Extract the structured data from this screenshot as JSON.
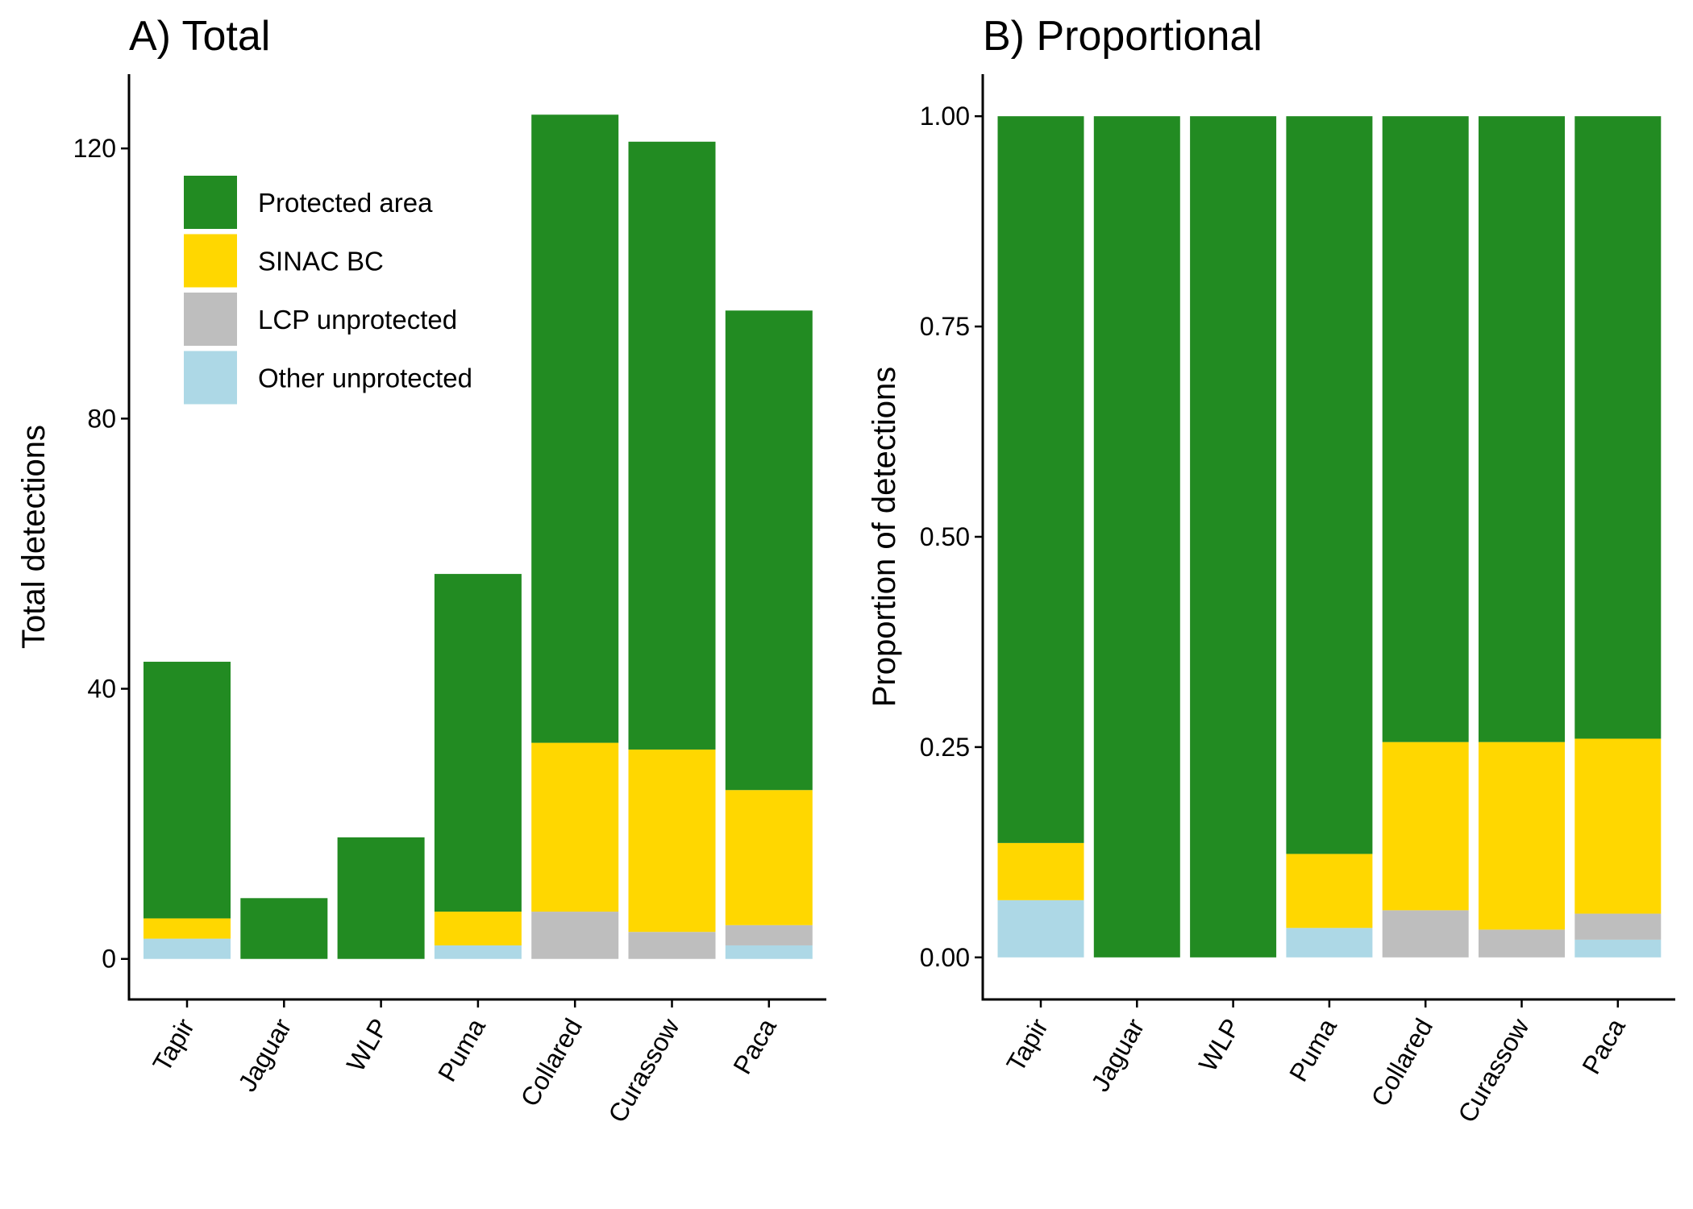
{
  "colors": {
    "Protected area": "#228B22",
    "SINAC BC": "#FFD700",
    "LCP unprotected": "#BEBEBE",
    "Other unprotected": "#ADD8E6"
  },
  "legend": {
    "entries": [
      "Protected area",
      "SINAC BC",
      "LCP unprotected",
      "Other unprotected"
    ]
  },
  "chart_data": [
    {
      "type": "bar",
      "stacked": true,
      "title": "A) Total",
      "xlabel": "",
      "ylabel": "Total detections",
      "ylim": [
        -6,
        131
      ],
      "yticks": [
        0,
        40,
        80,
        120
      ],
      "ytick_labels": [
        "0",
        "40",
        "80",
        "120"
      ],
      "categories": [
        "Tapir",
        "Jaguar",
        "WLP",
        "Puma",
        "Collared",
        "Curassow",
        "Paca"
      ],
      "series": [
        {
          "name": "Other unprotected",
          "values": [
            3,
            0,
            0,
            2,
            0,
            0,
            2
          ]
        },
        {
          "name": "LCP unprotected",
          "values": [
            0,
            0,
            0,
            0,
            7,
            4,
            3
          ]
        },
        {
          "name": "SINAC BC",
          "values": [
            3,
            0,
            0,
            5,
            25,
            27,
            20
          ]
        },
        {
          "name": "Protected area",
          "values": [
            38,
            9,
            18,
            50,
            93,
            90,
            71
          ]
        }
      ],
      "legend_position": "top-left",
      "grid": false
    },
    {
      "type": "bar",
      "stacked": true,
      "title": "B) Proportional",
      "xlabel": "",
      "ylabel": "Proportion of detections",
      "ylim": [
        -0.05,
        1.05
      ],
      "yticks": [
        0,
        0.25,
        0.5,
        0.75,
        1.0
      ],
      "ytick_labels": [
        "0.00",
        "0.25",
        "0.50",
        "0.75",
        "1.00"
      ],
      "categories": [
        "Tapir",
        "Jaguar",
        "WLP",
        "Puma",
        "Collared",
        "Curassow",
        "Paca"
      ],
      "series": [
        {
          "name": "Other unprotected",
          "values": [
            0.068,
            0,
            0,
            0.035,
            0,
            0,
            0.021
          ]
        },
        {
          "name": "LCP unprotected",
          "values": [
            0,
            0,
            0,
            0,
            0.056,
            0.033,
            0.031
          ]
        },
        {
          "name": "SINAC BC",
          "values": [
            0.068,
            0,
            0,
            0.088,
            0.2,
            0.223,
            0.208
          ]
        },
        {
          "name": "Protected area",
          "values": [
            0.864,
            1,
            1,
            0.877,
            0.744,
            0.744,
            0.74
          ]
        }
      ],
      "grid": false
    }
  ]
}
